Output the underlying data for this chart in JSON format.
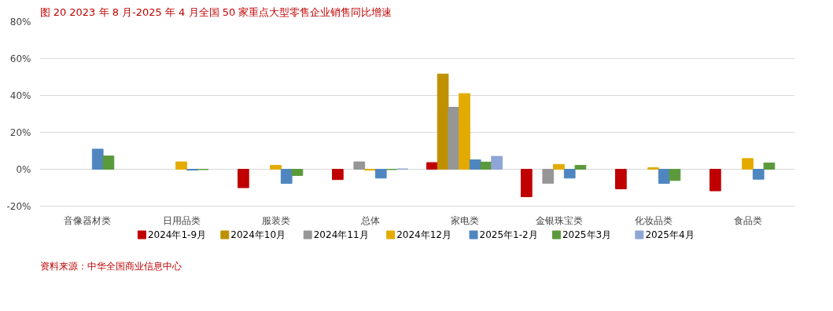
{
  "chart_data": {
    "type": "bar",
    "title": "图 20 2023 年 8 月-2025 年 4 月全国 50 家重点大型零售企业销售同比增速",
    "categories": [
      "音像器材类",
      "日用品类",
      "服装类",
      "总体",
      "家电类",
      "金银珠宝类",
      "化妆品类",
      "食品类"
    ],
    "series": [
      {
        "name": "2024年1-9月",
        "color": "#c00000",
        "values": [
          null,
          null,
          -10.0,
          -5.6,
          3.6,
          -14.9,
          -10.6,
          -11.7
        ]
      },
      {
        "name": "2024年10月",
        "color": "#bf9000",
        "values": [
          null,
          null,
          null,
          null,
          51.6,
          null,
          null,
          null
        ]
      },
      {
        "name": "2024年11月",
        "color": "#969696",
        "values": [
          null,
          null,
          null,
          4.0,
          33.6,
          -7.6,
          null,
          null
        ]
      },
      {
        "name": "2024年12月",
        "color": "#e3ab00",
        "values": [
          null,
          4.0,
          2.1,
          -0.5,
          41.0,
          2.6,
          0.8,
          5.8
        ]
      },
      {
        "name": "2025年1-2月",
        "color": "#4f86c0",
        "values": [
          10.9,
          -0.5,
          -7.7,
          -4.8,
          5.1,
          -4.8,
          -7.7,
          -5.4
        ]
      },
      {
        "name": "2025年3月",
        "color": "#5b9a3c",
        "values": [
          7.2,
          -0.2,
          -3.4,
          -0.2,
          3.9,
          2.1,
          -6.1,
          3.4
        ]
      },
      {
        "name": "2025年4月",
        "color": "#8fa5d6",
        "values": [
          null,
          null,
          null,
          0.2,
          7.0,
          null,
          null,
          null
        ]
      }
    ],
    "ylim": [
      -20,
      80
    ],
    "yticks": [
      {
        "value": -20,
        "label": "-20%"
      },
      {
        "value": 0,
        "label": "0%"
      },
      {
        "value": 20,
        "label": "20%"
      },
      {
        "value": 40,
        "label": "40%"
      },
      {
        "value": 60,
        "label": "60%"
      },
      {
        "value": 80,
        "label": "80%"
      }
    ],
    "grid": "y",
    "legend": "bottom",
    "annotations": [
      "资料来源：中华全国商业信息中心"
    ]
  }
}
